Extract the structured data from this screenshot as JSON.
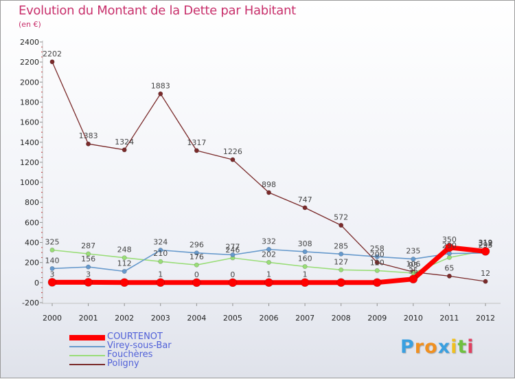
{
  "chart_data": {
    "type": "line",
    "title": "Evolution du Montant de la Dette par Habitant",
    "subtitle": "(en €)",
    "xlabel": "",
    "ylabel": "",
    "categories": [
      "2000",
      "2001",
      "2002",
      "2003",
      "2004",
      "2005",
      "2006",
      "2007",
      "2008",
      "2009",
      "2010",
      "2011",
      "2012"
    ],
    "ylim": [
      -200,
      2400
    ],
    "yticks": [
      -200,
      0,
      200,
      400,
      600,
      800,
      1000,
      1200,
      1400,
      1600,
      1800,
      2000,
      2200,
      2400
    ],
    "grid": false,
    "legend_position": "bottom-left",
    "series": [
      {
        "name": "Poligny",
        "color": "#7a2a2a",
        "values": [
          2202,
          1383,
          1324,
          1883,
          1317,
          1226,
          898,
          747,
          572,
          200,
          106,
          65,
          12
        ]
      },
      {
        "name": "Fouchères",
        "color": "#99dd77",
        "values": [
          325,
          287,
          248,
          210,
          176,
          246,
          202,
          160,
          127,
          120,
          95,
          250,
          319
        ]
      },
      {
        "name": "Virey-sous-Bar",
        "color": "#6699cc",
        "values": [
          140,
          156,
          112,
          324,
          296,
          277,
          332,
          308,
          285,
          258,
          235,
          290,
          295
        ]
      },
      {
        "name": "COURTENOT",
        "color": "#ff0000",
        "values": [
          3,
          3,
          1,
          1,
          0,
          0,
          1,
          1,
          1,
          1,
          35,
          350,
          312
        ]
      }
    ],
    "labels": [
      {
        "text": "2202",
        "series": 0,
        "index": 0
      },
      {
        "text": "1383",
        "series": 0,
        "index": 1
      },
      {
        "text": "1324",
        "series": 0,
        "index": 2
      },
      {
        "text": "1883",
        "series": 0,
        "index": 3
      },
      {
        "text": "1317",
        "series": 0,
        "index": 4
      },
      {
        "text": "1226",
        "series": 0,
        "index": 5
      },
      {
        "text": "898",
        "series": 0,
        "index": 6
      },
      {
        "text": "747",
        "series": 0,
        "index": 7
      },
      {
        "text": "572",
        "series": 0,
        "index": 8
      },
      {
        "text": "200",
        "series": 0,
        "index": 9
      },
      {
        "text": "106",
        "series": 0,
        "index": 10
      },
      {
        "text": "65",
        "series": 0,
        "index": 11
      },
      {
        "text": "12",
        "series": 0,
        "index": 12
      },
      {
        "text": "325",
        "series": 1,
        "index": 0
      },
      {
        "text": "287",
        "series": 1,
        "index": 1
      },
      {
        "text": "248",
        "series": 1,
        "index": 2
      },
      {
        "text": "210",
        "series": 1,
        "index": 3
      },
      {
        "text": "176",
        "series": 1,
        "index": 4
      },
      {
        "text": "246",
        "series": 1,
        "index": 5
      },
      {
        "text": "202",
        "series": 1,
        "index": 6
      },
      {
        "text": "160",
        "series": 1,
        "index": 7
      },
      {
        "text": "127",
        "series": 1,
        "index": 8
      },
      {
        "text": "120",
        "series": 1,
        "index": 9
      },
      {
        "text": "95",
        "series": 1,
        "index": 10
      },
      {
        "text": "319",
        "series": 1,
        "index": 12
      },
      {
        "text": "140",
        "series": 2,
        "index": 0
      },
      {
        "text": "156",
        "series": 2,
        "index": 1
      },
      {
        "text": "112",
        "series": 2,
        "index": 2
      },
      {
        "text": "324",
        "series": 2,
        "index": 3
      },
      {
        "text": "296",
        "series": 2,
        "index": 4
      },
      {
        "text": "277",
        "series": 2,
        "index": 5
      },
      {
        "text": "332",
        "series": 2,
        "index": 6
      },
      {
        "text": "308",
        "series": 2,
        "index": 7
      },
      {
        "text": "285",
        "series": 2,
        "index": 8
      },
      {
        "text": "258",
        "series": 2,
        "index": 9
      },
      {
        "text": "235",
        "series": 2,
        "index": 10
      },
      {
        "text": "290",
        "series": 2,
        "index": 11
      },
      {
        "text": "295",
        "series": 2,
        "index": 12
      },
      {
        "text": "3",
        "series": 3,
        "index": 0
      },
      {
        "text": "3",
        "series": 3,
        "index": 1
      },
      {
        "text": "1",
        "series": 3,
        "index": 3
      },
      {
        "text": "0",
        "series": 3,
        "index": 4
      },
      {
        "text": "0",
        "series": 3,
        "index": 5
      },
      {
        "text": "1",
        "series": 3,
        "index": 6
      },
      {
        "text": "1",
        "series": 3,
        "index": 7
      },
      {
        "text": "35",
        "series": 3,
        "index": 10
      },
      {
        "text": "350",
        "series": 3,
        "index": 11
      },
      {
        "text": "312",
        "series": 3,
        "index": 12
      }
    ]
  },
  "legend": [
    {
      "label": "COURTENOT",
      "color": "#ff0000"
    },
    {
      "label": "Virey-sous-Bar",
      "color": "#6699cc"
    },
    {
      "label": "Fouchères",
      "color": "#99dd77"
    },
    {
      "label": "Poligny",
      "color": "#7a2a2a"
    }
  ],
  "logo": {
    "letters": [
      "P",
      "r",
      "o",
      "x",
      "i",
      "t",
      "i"
    ],
    "colors": [
      "#3aa0e0",
      "#f09020",
      "#f09020",
      "#3aa0e0",
      "#f0c020",
      "#70c040",
      "#e04060"
    ]
  }
}
